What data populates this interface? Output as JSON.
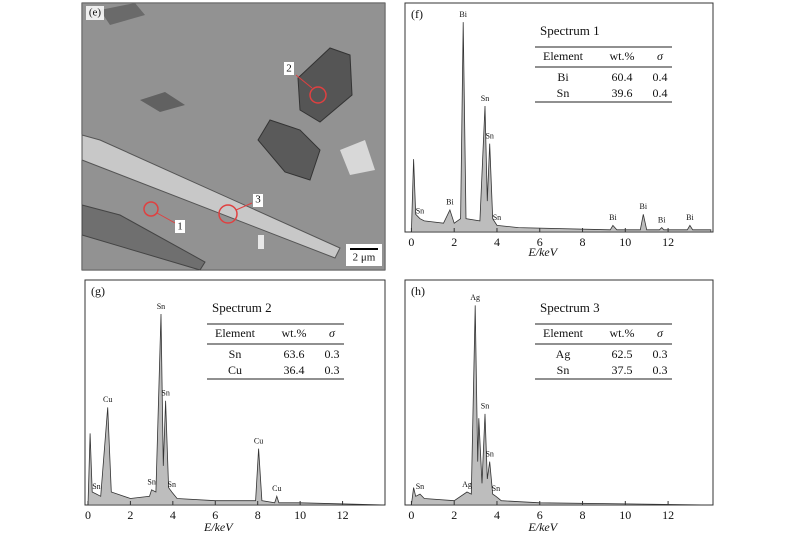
{
  "image_panel": {
    "label": "(e)",
    "markers": [
      "1",
      "2",
      "3"
    ],
    "scale_bar": "2 μm"
  },
  "chart_data": [
    {
      "type": "spectrum",
      "panel_label": "(f)",
      "title": "Spectrum 1",
      "xlabel": "E/keV",
      "xlim": [
        -0.3,
        14.1
      ],
      "ylim": [
        0,
        100
      ],
      "xticks": [
        0,
        2,
        4,
        6,
        8,
        10,
        12
      ],
      "color": "#bdbdbd",
      "x": [
        0,
        0.1,
        0.2,
        0.4,
        0.6,
        1.5,
        1.8,
        2.0,
        2.3,
        2.42,
        2.55,
        3.2,
        3.44,
        3.55,
        3.66,
        3.8,
        4.0,
        5,
        9.3,
        9.42,
        9.6,
        10.7,
        10.84,
        11.0,
        11.6,
        11.7,
        11.8,
        12.9,
        13.02,
        13.15,
        14
      ],
      "values": [
        0,
        33,
        8,
        6,
        5,
        4,
        10,
        4,
        6,
        95,
        6,
        5,
        57,
        14,
        40,
        6,
        3,
        2,
        1,
        3,
        1,
        1,
        8,
        1,
        1,
        2,
        1,
        1,
        3,
        1,
        1
      ],
      "peaks": [
        {
          "label": "Sn",
          "x": 0.4
        },
        {
          "label": "Bi",
          "x": 1.8
        },
        {
          "label": "Bi",
          "x": 2.42
        },
        {
          "label": "Sn",
          "x": 3.44
        },
        {
          "label": "Sn",
          "x": 3.66
        },
        {
          "label": "Sn",
          "x": 4.0
        },
        {
          "label": "Bi",
          "x": 9.42
        },
        {
          "label": "Bi",
          "x": 10.84
        },
        {
          "label": "Bi",
          "x": 11.7
        },
        {
          "label": "Bi",
          "x": 13.02
        }
      ],
      "table": {
        "header": [
          "Element",
          "wt.%",
          "σ"
        ],
        "rows": [
          [
            "Bi",
            60.4,
            0.4
          ],
          [
            "Sn",
            39.6,
            0.4
          ]
        ]
      }
    },
    {
      "type": "spectrum",
      "panel_label": "(g)",
      "title": "Spectrum 2",
      "xlabel": "E/keV",
      "xlim": [
        -0.14,
        14.0
      ],
      "ylim": [
        0,
        100
      ],
      "xticks": [
        0,
        2,
        4,
        6,
        8,
        10,
        12
      ],
      "color": "#bdbdbd",
      "x": [
        0,
        0.1,
        0.2,
        0.4,
        0.6,
        0.93,
        1.1,
        2.0,
        2.9,
        3.0,
        3.2,
        3.44,
        3.55,
        3.66,
        3.8,
        3.95,
        4.2,
        6,
        7.9,
        8.04,
        8.2,
        8.8,
        8.9,
        9.0,
        10,
        14
      ],
      "values": [
        0,
        33,
        6,
        5,
        4,
        45,
        6,
        3,
        4,
        7,
        6,
        88,
        18,
        48,
        8,
        6,
        3,
        2,
        2,
        26,
        2,
        1,
        4,
        1,
        1,
        0
      ],
      "peaks": [
        {
          "label": "Sn",
          "x": 0.4
        },
        {
          "label": "Cu",
          "x": 0.93
        },
        {
          "label": "Sn",
          "x": 3.0
        },
        {
          "label": "Sn",
          "x": 3.44
        },
        {
          "label": "Sn",
          "x": 3.66
        },
        {
          "label": "Sn",
          "x": 3.95
        },
        {
          "label": "Cu",
          "x": 8.04
        },
        {
          "label": "Cu",
          "x": 8.9
        }
      ],
      "table": {
        "header": [
          "Element",
          "wt.%",
          "σ"
        ],
        "rows": [
          [
            "Sn",
            63.6,
            0.3
          ],
          [
            "Cu",
            36.4,
            0.3
          ]
        ]
      }
    },
    {
      "type": "spectrum",
      "panel_label": "(h)",
      "title": "Spectrum 3",
      "xlabel": "E/keV",
      "xlim": [
        -0.3,
        14.1
      ],
      "ylim": [
        0,
        100
      ],
      "xticks": [
        0,
        2,
        4,
        6,
        8,
        10,
        12
      ],
      "color": "#bdbdbd",
      "x": [
        0,
        0.1,
        0.2,
        0.4,
        0.6,
        2.0,
        2.6,
        2.8,
        2.98,
        3.1,
        3.15,
        3.3,
        3.44,
        3.55,
        3.66,
        3.8,
        3.95,
        4.2,
        6,
        14
      ],
      "values": [
        0,
        8,
        4,
        5,
        3,
        2,
        6,
        5,
        92,
        20,
        40,
        10,
        42,
        12,
        20,
        5,
        4,
        2,
        1,
        0
      ],
      "peaks": [
        {
          "label": "Sn",
          "x": 0.4
        },
        {
          "label": "Ag",
          "x": 2.6
        },
        {
          "label": "Ag",
          "x": 2.98
        },
        {
          "label": "Sn",
          "x": 3.44
        },
        {
          "label": "Sn",
          "x": 3.66
        },
        {
          "label": "Sn",
          "x": 3.95
        }
      ],
      "table": {
        "header": [
          "Element",
          "wt.%",
          "σ"
        ],
        "rows": [
          [
            "Ag",
            62.5,
            0.3
          ],
          [
            "Sn",
            37.5,
            0.3
          ]
        ]
      }
    }
  ]
}
